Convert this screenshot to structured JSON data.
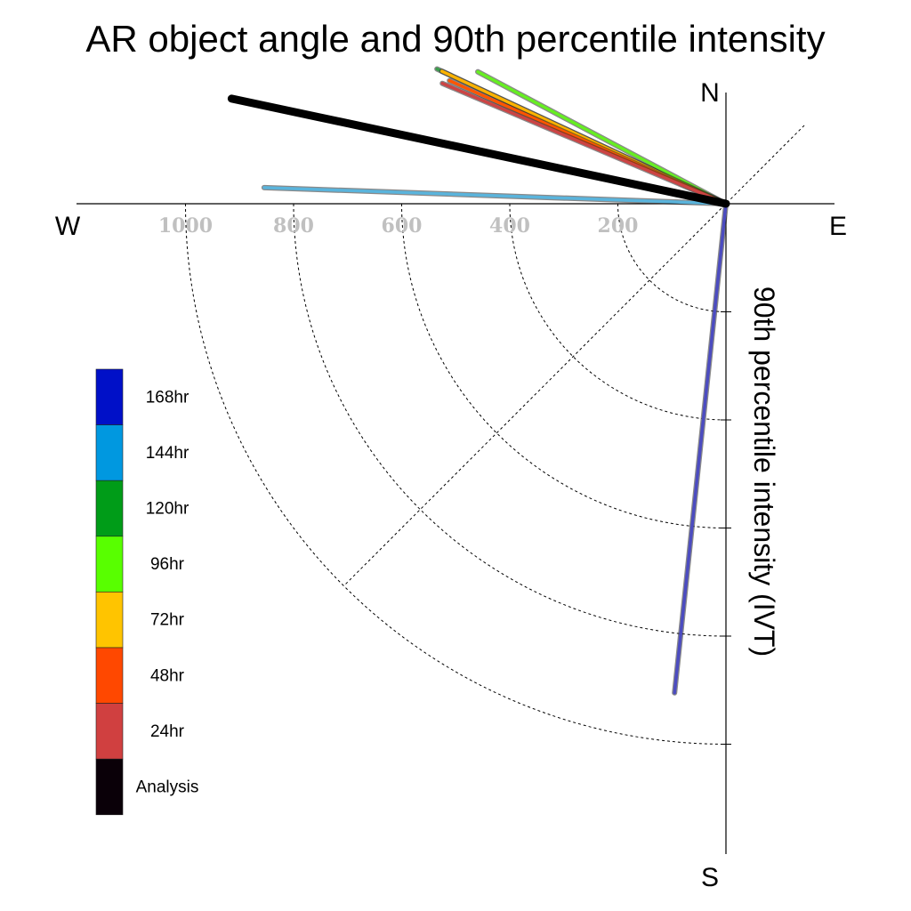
{
  "chart_data": {
    "type": "polar-line",
    "title": "AR object angle and 90th percentile intensity",
    "ylabel": "90th percentile intensity (IVT)",
    "compass": {
      "north": "N",
      "south": "S",
      "east": "E",
      "west": "W"
    },
    "radial_ticks": [
      "200",
      "400",
      "600",
      "800",
      "1000"
    ],
    "radial_tick_values": [
      200,
      400,
      600,
      800,
      1000
    ],
    "rlim": [
      0,
      1200
    ],
    "grid": true,
    "legend_position": "left",
    "legend": [
      {
        "label": "168hr",
        "color": "#0010c8"
      },
      {
        "label": "144hr",
        "color": "#0098e0"
      },
      {
        "label": "120hr",
        "color": "#009c18"
      },
      {
        "label": "96hr",
        "color": "#58ff00"
      },
      {
        "label": "72hr",
        "color": "#ffc400"
      },
      {
        "label": "48hr",
        "color": "#ff4800"
      },
      {
        "label": "24hr",
        "color": "#d04040"
      },
      {
        "label": "Analysis",
        "color": "#0a0008"
      }
    ],
    "series": [
      {
        "name": "168hr",
        "color": "#4c4cc0",
        "angle_deg": 186,
        "intensity": 910
      },
      {
        "name": "144hr",
        "color": "#5ab4dc",
        "angle_deg": 272,
        "intensity": 855
      },
      {
        "name": "120hr",
        "color": "#3c9e4c",
        "angle_deg": 295,
        "intensity": 590
      },
      {
        "name": "96hr",
        "color": "#66ee22",
        "angle_deg": 298,
        "intensity": 520
      },
      {
        "name": "72hr",
        "color": "#ffb300",
        "angle_deg": 295,
        "intensity": 580
      },
      {
        "name": "48hr",
        "color": "#ff5500",
        "angle_deg": 294,
        "intensity": 560
      },
      {
        "name": "24hr",
        "color": "#cc4444",
        "angle_deg": 293,
        "intensity": 570
      },
      {
        "name": "Analysis",
        "color": "#000000",
        "angle_deg": 282,
        "intensity": 935
      }
    ]
  }
}
